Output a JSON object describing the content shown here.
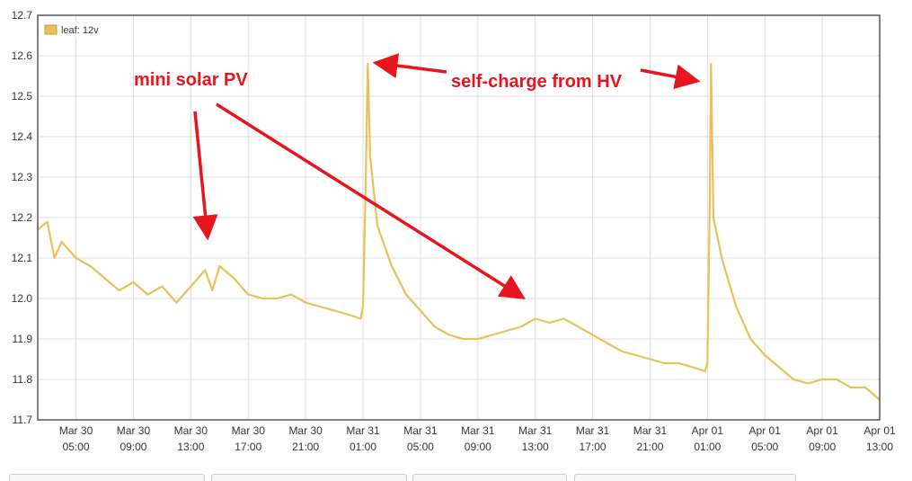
{
  "chart_data": {
    "type": "line",
    "legend": "top-left",
    "grid": true,
    "ylim": [
      11.7,
      12.7
    ],
    "yticks": [
      11.7,
      11.8,
      11.9,
      {
        "value": 12,
        "label": "12.0"
      },
      12.1,
      12.2,
      12.3,
      12.4,
      12.5,
      12.6,
      12.7
    ],
    "xlim": [
      "Mar 30 02:20",
      "Apr 01 13:00"
    ],
    "xticks": [
      "Mar 30 05:00",
      "Mar 30 09:00",
      "Mar 30 13:00",
      "Mar 30 17:00",
      "Mar 30 21:00",
      "Mar 31 01:00",
      "Mar 31 05:00",
      "Mar 31 09:00",
      "Mar 31 13:00",
      "Mar 31 17:00",
      "Mar 31 21:00",
      "Apr 01 01:00",
      "Apr 01 05:00",
      "Apr 01 09:00",
      "Apr 01 13:00"
    ],
    "x": [
      "Mar 30 02:20",
      "Mar 30 03:00",
      "Mar 30 03:30",
      "Mar 30 04:00",
      "Mar 30 05:00",
      "Mar 30 06:00",
      "Mar 30 07:00",
      "Mar 30 08:00",
      "Mar 30 09:00",
      "Mar 30 10:00",
      "Mar 30 11:00",
      "Mar 30 12:00",
      "Mar 30 13:00",
      "Mar 30 14:00",
      "Mar 30 14:30",
      "Mar 30 15:00",
      "Mar 30 16:00",
      "Mar 30 17:00",
      "Mar 30 18:00",
      "Mar 30 19:00",
      "Mar 30 20:00",
      "Mar 30 21:00",
      "Mar 30 22:00",
      "Mar 30 23:00",
      "Mar 31 00:00",
      "Mar 31 00:50",
      "Mar 31 01:00",
      "Mar 31 01:10",
      "Mar 31 01:20",
      "Mar 31 01:30",
      "Mar 31 02:00",
      "Mar 31 03:00",
      "Mar 31 04:00",
      "Mar 31 05:00",
      "Mar 31 06:00",
      "Mar 31 07:00",
      "Mar 31 08:00",
      "Mar 31 09:00",
      "Mar 31 10:00",
      "Mar 31 11:00",
      "Mar 31 12:00",
      "Mar 31 13:00",
      "Mar 31 14:00",
      "Mar 31 15:00",
      "Mar 31 16:00",
      "Mar 31 17:00",
      "Mar 31 18:00",
      "Mar 31 19:00",
      "Mar 31 20:00",
      "Mar 31 21:00",
      "Mar 31 22:00",
      "Mar 31 23:00",
      "Apr 01 00:00",
      "Apr 01 00:50",
      "Apr 01 01:00",
      "Apr 01 01:10",
      "Apr 01 01:15",
      "Apr 01 01:25",
      "Apr 01 02:00",
      "Apr 01 03:00",
      "Apr 01 04:00",
      "Apr 01 05:00",
      "Apr 01 06:00",
      "Apr 01 07:00",
      "Apr 01 08:00",
      "Apr 01 09:00",
      "Apr 01 10:00",
      "Apr 01 11:00",
      "Apr 01 12:00",
      "Apr 01 13:00"
    ],
    "series": [
      {
        "name": "leaf: 12v",
        "color": "#e8c15a",
        "values": [
          12.17,
          12.19,
          12.1,
          12.14,
          12.1,
          12.08,
          12.05,
          12.02,
          12.04,
          12.01,
          12.03,
          11.99,
          12.03,
          12.07,
          12.02,
          12.08,
          12.05,
          12.01,
          12.0,
          12.0,
          12.01,
          11.99,
          11.98,
          11.97,
          11.96,
          11.95,
          11.98,
          12.25,
          12.58,
          12.35,
          12.18,
          12.08,
          12.01,
          11.97,
          11.93,
          11.91,
          11.9,
          11.9,
          11.91,
          11.92,
          11.93,
          11.95,
          11.94,
          11.95,
          11.93,
          11.91,
          11.89,
          11.87,
          11.86,
          11.85,
          11.84,
          11.84,
          11.83,
          11.82,
          11.84,
          12.25,
          12.58,
          12.2,
          12.1,
          11.98,
          11.9,
          11.86,
          11.83,
          11.8,
          11.79,
          11.8,
          11.8,
          11.78,
          11.78,
          11.75
        ]
      }
    ],
    "annotations": [
      "mini solar PV",
      "self-charge from HV"
    ]
  }
}
